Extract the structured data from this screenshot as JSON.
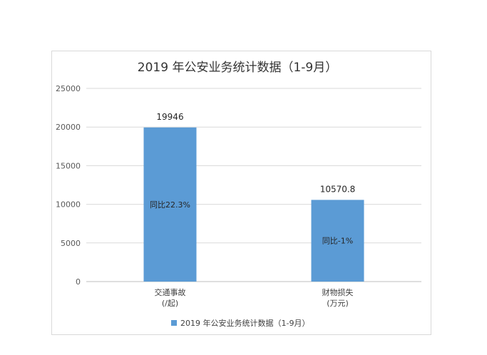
{
  "chart_data": {
    "type": "bar",
    "title": "2019 年公安业务统计数据（1-9月）",
    "categories": [
      {
        "line1": "交通事故",
        "line2": "(/起)"
      },
      {
        "line1": "财物损失",
        "line2": "(万元)"
      }
    ],
    "series": [
      {
        "name": "2019 年公安业务统计数据（1-9月）",
        "color": "#5b9bd5",
        "values": [
          19946,
          10570.8
        ],
        "value_labels": [
          "19946",
          "10570.8"
        ],
        "inner_labels": [
          "同比22.3%",
          "同比-1%"
        ]
      }
    ],
    "y_ticks": [
      "0",
      "5000",
      "10000",
      "15000",
      "20000",
      "25000"
    ],
    "ylim": [
      0,
      25000
    ],
    "grid": true,
    "legend_position": "bottom"
  }
}
